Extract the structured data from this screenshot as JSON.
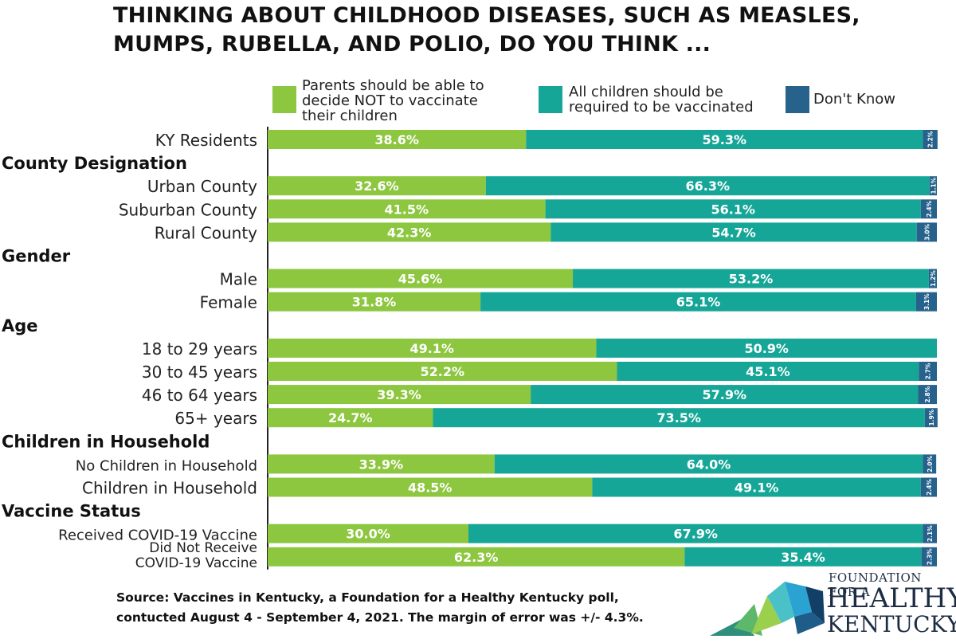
{
  "title": {
    "line1": "THINKING ABOUT CHILDHOOD DISEASES, SUCH AS MEASLES,",
    "line2": "MUMPS, RUBELLA, AND POLIO, DO YOU THINK ..."
  },
  "colors": {
    "parents": "#8dc63f",
    "required": "#16a697",
    "dont_know": "#27628c"
  },
  "chart_data": {
    "type": "bar",
    "orientation": "horizontal",
    "stacked": true,
    "series": [
      {
        "key": "parents",
        "name": "Parents should be able to\ndecide NOT to vaccinate\ntheir children"
      },
      {
        "key": "required",
        "name": "All children should be\nrequired to be vaccinated"
      },
      {
        "key": "dont_know",
        "name": "Don't Know"
      }
    ],
    "rows": [
      {
        "kind": "bar",
        "label": "KY Residents",
        "values": [
          38.6,
          59.3,
          2.2
        ],
        "labels": [
          "38.6%",
          "59.3%",
          "2.2%"
        ]
      },
      {
        "kind": "header",
        "label": "County Designation"
      },
      {
        "kind": "bar",
        "label": "Urban County",
        "values": [
          32.6,
          66.3,
          1.1
        ],
        "labels": [
          "32.6%",
          "66.3%",
          "1.1%"
        ]
      },
      {
        "kind": "bar",
        "label": "Suburban County",
        "values": [
          41.5,
          56.1,
          2.4
        ],
        "labels": [
          "41.5%",
          "56.1%",
          "2.4%"
        ]
      },
      {
        "kind": "bar",
        "label": "Rural County",
        "values": [
          42.3,
          54.7,
          3.0
        ],
        "labels": [
          "42.3%",
          "54.7%",
          "3.0%"
        ]
      },
      {
        "kind": "header",
        "label": "Gender"
      },
      {
        "kind": "bar",
        "label": "Male",
        "values": [
          45.6,
          53.2,
          1.2
        ],
        "labels": [
          "45.6%",
          "53.2%",
          "1.2%"
        ]
      },
      {
        "kind": "bar",
        "label": "Female",
        "values": [
          31.8,
          65.1,
          3.1
        ],
        "labels": [
          "31.8%",
          "65.1%",
          "3.1%"
        ]
      },
      {
        "kind": "header",
        "label": "Age"
      },
      {
        "kind": "bar",
        "label": "18 to 29 years",
        "values": [
          49.1,
          50.9,
          0
        ],
        "labels": [
          "49.1%",
          "50.9%",
          ""
        ]
      },
      {
        "kind": "bar",
        "label": "30 to 45 years",
        "values": [
          52.2,
          45.1,
          2.7
        ],
        "labels": [
          "52.2%",
          "45.1%",
          "2.7%"
        ]
      },
      {
        "kind": "bar",
        "label": "46 to 64 years",
        "values": [
          39.3,
          57.9,
          2.8
        ],
        "labels": [
          "39.3%",
          "57.9%",
          "2.8%"
        ]
      },
      {
        "kind": "bar",
        "label": "65+ years",
        "values": [
          24.7,
          73.5,
          1.9
        ],
        "labels": [
          "24.7%",
          "73.5%",
          "1.9%"
        ]
      },
      {
        "kind": "header",
        "label": "Children in Household"
      },
      {
        "kind": "bar",
        "label": "No Children in Household",
        "values": [
          33.9,
          64.0,
          2.0
        ],
        "labels": [
          "33.9%",
          "64.0%",
          "2.0%"
        ]
      },
      {
        "kind": "bar",
        "label": "Children in Household",
        "values": [
          48.5,
          49.1,
          2.4
        ],
        "labels": [
          "48.5%",
          "49.1%",
          "2.4%"
        ]
      },
      {
        "kind": "header",
        "label": "Vaccine Status"
      },
      {
        "kind": "bar",
        "label": "Received COVID-19 Vaccine",
        "values": [
          30.0,
          67.9,
          2.1
        ],
        "labels": [
          "30.0%",
          "67.9%",
          "2.1%"
        ]
      },
      {
        "kind": "bar",
        "label": "Did Not Receive\nCOVID-19 Vaccine",
        "values": [
          62.3,
          35.4,
          2.3
        ],
        "labels": [
          "62.3%",
          "35.4%",
          "2.3%"
        ]
      }
    ],
    "xlim": [
      0,
      100
    ]
  },
  "footer": {
    "line1": "Source: Vaccines in Kentucky, a Foundation for a Healthy Kentucky poll,",
    "line2": "contucted August 4 - September 4, 2021.  The margin of error was +/- 4.3%."
  },
  "logo": {
    "line1": "FOUNDATION FOR A",
    "line2": "HEALTHY",
    "line3": "KENTUCKY"
  }
}
